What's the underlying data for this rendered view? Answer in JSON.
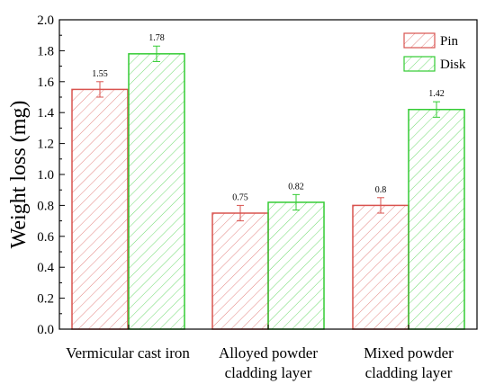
{
  "chart_data": {
    "type": "bar",
    "categories": [
      [
        "Vermicular cast iron"
      ],
      [
        "Alloyed powder",
        "cladding layer"
      ],
      [
        "Mixed powder",
        "cladding layer"
      ]
    ],
    "series": [
      {
        "name": "Pin",
        "values": [
          1.55,
          0.75,
          0.8
        ],
        "value_labels": [
          "1.55",
          "0.75",
          "0.8"
        ],
        "errors": [
          0.05,
          0.05,
          0.05
        ],
        "color": "#d9534f"
      },
      {
        "name": "Disk",
        "values": [
          1.78,
          0.82,
          1.42
        ],
        "value_labels": [
          "1.78",
          "0.82",
          "1.42"
        ],
        "errors": [
          0.05,
          0.05,
          0.05
        ],
        "color": "#33cc33"
      }
    ],
    "xlabel": "",
    "ylabel": "Weight loss (mg)",
    "ylim": [
      0,
      2.0
    ],
    "yticks": [
      "0.0",
      "0.2",
      "0.4",
      "0.6",
      "0.8",
      "1.0",
      "1.2",
      "1.4",
      "1.6",
      "1.8",
      "2.0"
    ],
    "fill_pattern": "diagonal-hatch",
    "grid": false,
    "legend_position": "top-right"
  }
}
